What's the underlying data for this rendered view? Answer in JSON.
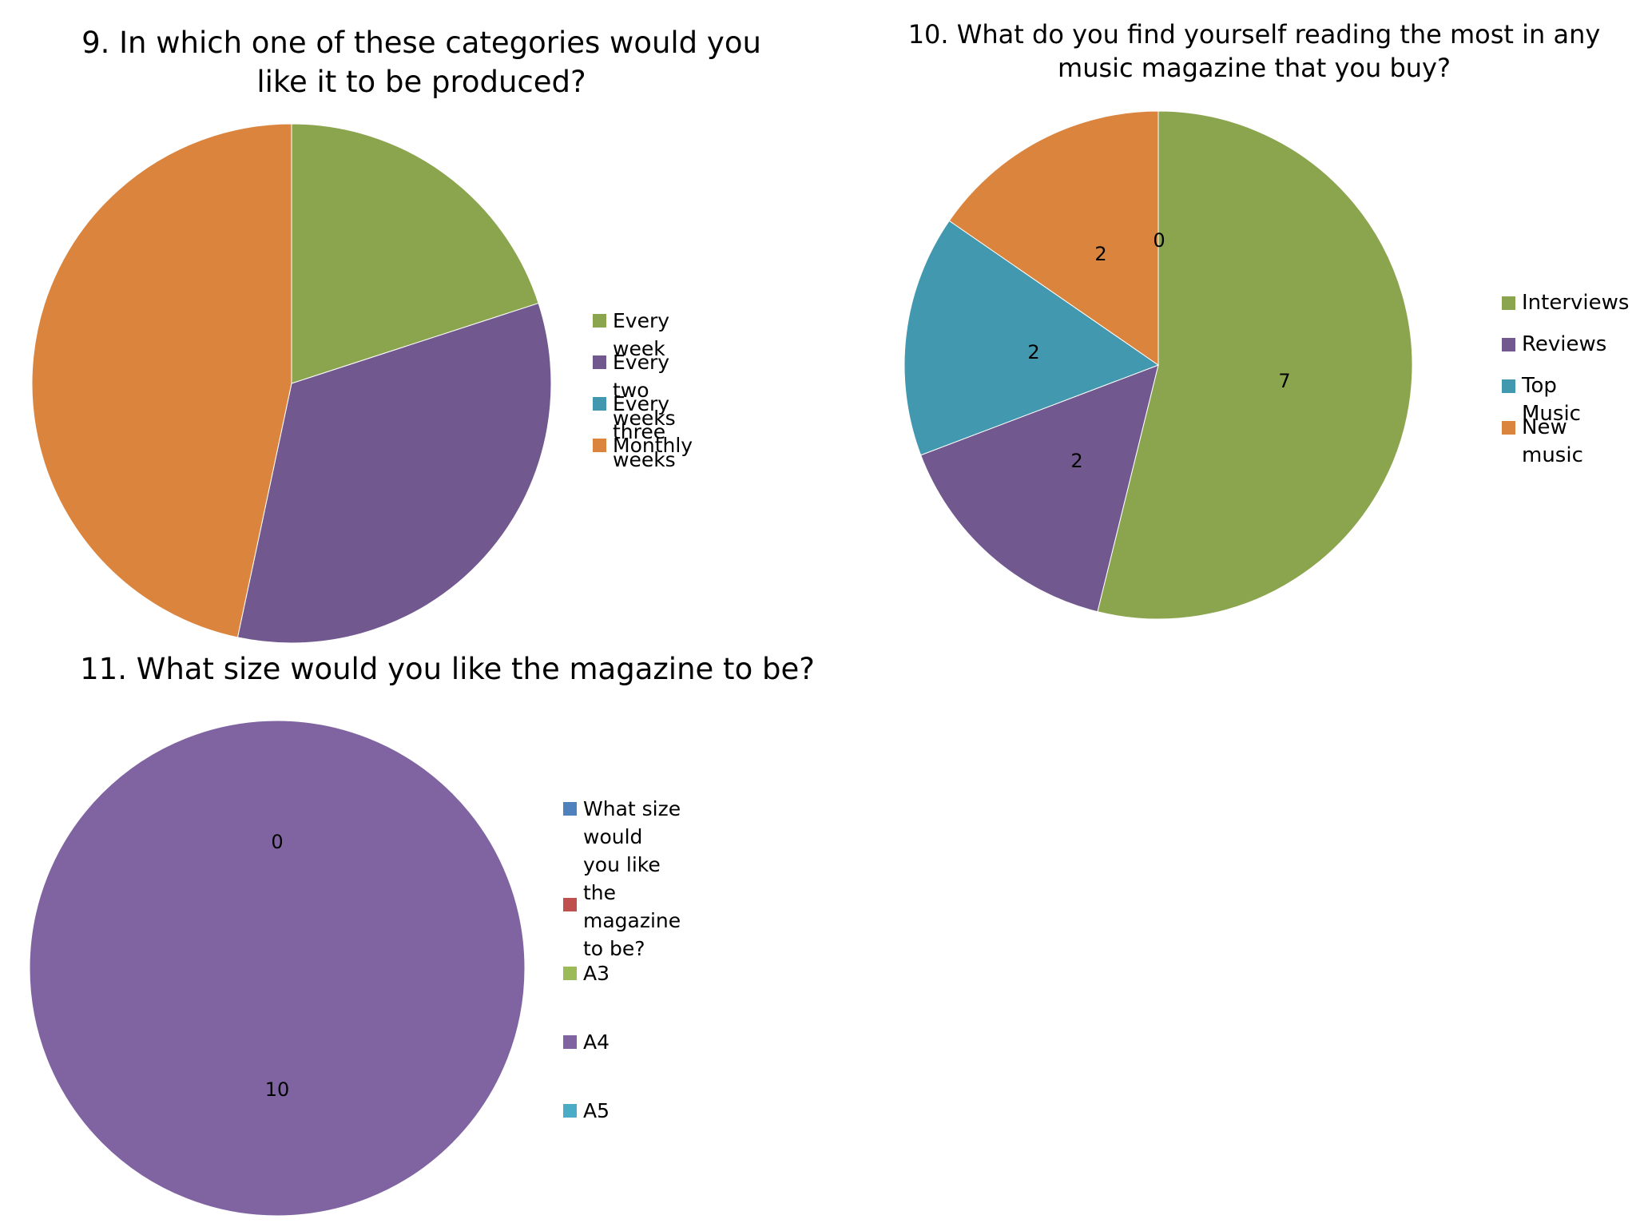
{
  "chart_data": [
    {
      "type": "pie",
      "title": "9. In which one of these categories would you like it to be produced?",
      "categories": [
        "Every week",
        "Every two weeks",
        "Every three weeks",
        "Monthly"
      ],
      "values": [
        3,
        5,
        0,
        7
      ],
      "colors": [
        "#8BA54F",
        "#71588F",
        "#4198AF",
        "#DB843D"
      ],
      "data_labels": false,
      "legend": "right"
    },
    {
      "type": "pie",
      "title": "10. What do you find yourself reading the most in any music magazine that you buy?",
      "categories": [
        "Interviews",
        "Reviews",
        "Top Music",
        "New music"
      ],
      "values": [
        7,
        2,
        2,
        2
      ],
      "colors": [
        "#8BA54F",
        "#71588F",
        "#4198AF",
        "#DB843D"
      ],
      "data_labels": true,
      "extra_labels": [
        "0"
      ],
      "legend": "right"
    },
    {
      "type": "pie",
      "title": "11. What size would you like the magazine to be?",
      "categories": [
        "What size would you like the magazine to be?",
        "",
        "A3",
        "A4",
        "A5"
      ],
      "values": [
        0,
        0,
        0,
        10,
        0
      ],
      "colors": [
        "#4F81BD",
        "#C0504D",
        "#9BBB59",
        "#8064A2",
        "#4BACC6"
      ],
      "data_labels": true,
      "extra_labels": [
        "0"
      ],
      "legend": "right"
    }
  ]
}
